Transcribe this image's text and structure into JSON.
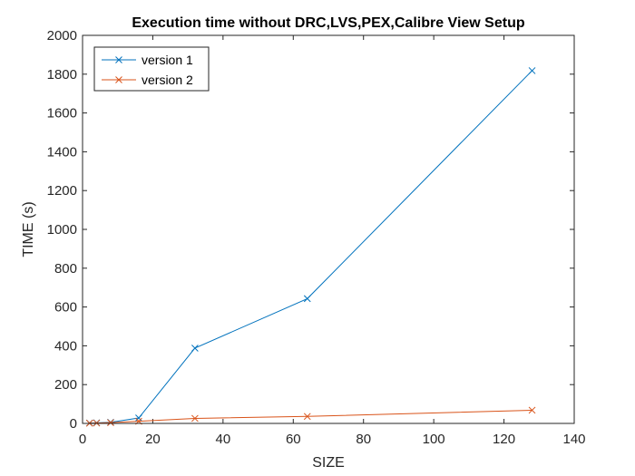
{
  "chart_data": {
    "type": "line",
    "title": "Execution time without DRC,LVS,PEX,Calibre View Setup",
    "xlabel": "SIZE",
    "ylabel": "TIME (s)",
    "xlim": [
      0,
      140
    ],
    "ylim": [
      0,
      2000
    ],
    "xticks": [
      "0",
      "20",
      "40",
      "60",
      "80",
      "100",
      "120",
      "140"
    ],
    "yticks": [
      "0",
      "200",
      "400",
      "600",
      "800",
      "1000",
      "1200",
      "1400",
      "1600",
      "1800",
      "2000"
    ],
    "grid": false,
    "legend_position": "top-left",
    "marker": "x",
    "series": [
      {
        "name": "version 1",
        "color": "#0072BD",
        "x": [
          2,
          4,
          8,
          16,
          32,
          64,
          128
        ],
        "y": [
          2,
          3,
          6,
          28,
          388,
          643,
          1818
        ]
      },
      {
        "name": "version 2",
        "color": "#D95319",
        "x": [
          2,
          4,
          8,
          16,
          32,
          64,
          128
        ],
        "y": [
          1,
          2,
          4,
          11,
          26,
          36,
          68
        ]
      }
    ]
  }
}
